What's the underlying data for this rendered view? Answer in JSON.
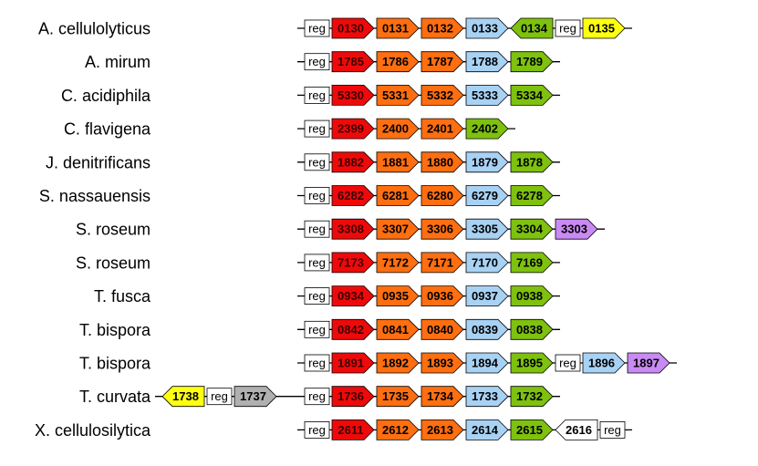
{
  "palette": {
    "red": "#ee0a0a",
    "orange": "#ff6e10",
    "blue": "#a8d2f4",
    "green": "#7ec10e",
    "yellow": "#ffff10",
    "purple": "#c98af4",
    "gray": "#b0b0b0",
    "white": "#ffffff"
  },
  "rows": [
    {
      "species": "A. cellulolyticus",
      "genes": [
        {
          "label": "reg",
          "color": "white",
          "dir": "none",
          "kind": "reg"
        },
        {
          "label": "0130",
          "color": "red",
          "dir": "right"
        },
        {
          "label": "0131",
          "color": "orange",
          "dir": "right"
        },
        {
          "label": "0132",
          "color": "orange",
          "dir": "right"
        },
        {
          "label": "0133",
          "color": "blue",
          "dir": "right"
        },
        {
          "label": "0134",
          "color": "green",
          "dir": "left"
        },
        {
          "label": "reg",
          "color": "white",
          "dir": "none",
          "kind": "reg"
        },
        {
          "label": "0135",
          "color": "yellow",
          "dir": "right"
        }
      ]
    },
    {
      "species": "A. mirum",
      "genes": [
        {
          "label": "reg",
          "color": "white",
          "dir": "none",
          "kind": "reg"
        },
        {
          "label": "1785",
          "color": "red",
          "dir": "right"
        },
        {
          "label": "1786",
          "color": "orange",
          "dir": "right"
        },
        {
          "label": "1787",
          "color": "orange",
          "dir": "right"
        },
        {
          "label": "1788",
          "color": "blue",
          "dir": "right"
        },
        {
          "label": "1789",
          "color": "green",
          "dir": "right"
        }
      ]
    },
    {
      "species": "C. acidiphila",
      "genes": [
        {
          "label": "reg",
          "color": "white",
          "dir": "none",
          "kind": "reg"
        },
        {
          "label": "5330",
          "color": "red",
          "dir": "right"
        },
        {
          "label": "5331",
          "color": "orange",
          "dir": "right"
        },
        {
          "label": "5332",
          "color": "orange",
          "dir": "right"
        },
        {
          "label": "5333",
          "color": "blue",
          "dir": "right"
        },
        {
          "label": "5334",
          "color": "green",
          "dir": "right"
        }
      ]
    },
    {
      "species": "C. flavigena",
      "genes": [
        {
          "label": "reg",
          "color": "white",
          "dir": "none",
          "kind": "reg"
        },
        {
          "label": "2399",
          "color": "red",
          "dir": "right"
        },
        {
          "label": "2400",
          "color": "orange",
          "dir": "right"
        },
        {
          "label": "2401",
          "color": "orange",
          "dir": "right"
        },
        {
          "label": "2402",
          "color": "green",
          "dir": "right"
        }
      ]
    },
    {
      "species": "J. denitrificans",
      "genes": [
        {
          "label": "reg",
          "color": "white",
          "dir": "none",
          "kind": "reg"
        },
        {
          "label": "1882",
          "color": "red",
          "dir": "right"
        },
        {
          "label": "1881",
          "color": "orange",
          "dir": "right"
        },
        {
          "label": "1880",
          "color": "orange",
          "dir": "right"
        },
        {
          "label": "1879",
          "color": "blue",
          "dir": "right"
        },
        {
          "label": "1878",
          "color": "green",
          "dir": "right"
        }
      ]
    },
    {
      "species": "S. nassauensis",
      "genes": [
        {
          "label": "reg",
          "color": "white",
          "dir": "none",
          "kind": "reg"
        },
        {
          "label": "6282",
          "color": "red",
          "dir": "right"
        },
        {
          "label": "6281",
          "color": "orange",
          "dir": "right"
        },
        {
          "label": "6280",
          "color": "orange",
          "dir": "right"
        },
        {
          "label": "6279",
          "color": "blue",
          "dir": "right"
        },
        {
          "label": "6278",
          "color": "green",
          "dir": "right"
        }
      ]
    },
    {
      "species": "S. roseum",
      "genes": [
        {
          "label": "reg",
          "color": "white",
          "dir": "none",
          "kind": "reg"
        },
        {
          "label": "3308",
          "color": "red",
          "dir": "right"
        },
        {
          "label": "3307",
          "color": "orange",
          "dir": "right"
        },
        {
          "label": "3306",
          "color": "orange",
          "dir": "right"
        },
        {
          "label": "3305",
          "color": "blue",
          "dir": "right"
        },
        {
          "label": "3304",
          "color": "green",
          "dir": "right"
        },
        {
          "label": "3303",
          "color": "purple",
          "dir": "right"
        }
      ]
    },
    {
      "species": "S. roseum",
      "genes": [
        {
          "label": "reg",
          "color": "white",
          "dir": "none",
          "kind": "reg"
        },
        {
          "label": "7173",
          "color": "red",
          "dir": "right"
        },
        {
          "label": "7172",
          "color": "orange",
          "dir": "right"
        },
        {
          "label": "7171",
          "color": "orange",
          "dir": "right"
        },
        {
          "label": "7170",
          "color": "blue",
          "dir": "right"
        },
        {
          "label": "7169",
          "color": "green",
          "dir": "right"
        }
      ]
    },
    {
      "species": "T. fusca",
      "genes": [
        {
          "label": "reg",
          "color": "white",
          "dir": "none",
          "kind": "reg"
        },
        {
          "label": "0934",
          "color": "red",
          "dir": "right"
        },
        {
          "label": "0935",
          "color": "orange",
          "dir": "right"
        },
        {
          "label": "0936",
          "color": "orange",
          "dir": "right"
        },
        {
          "label": "0937",
          "color": "blue",
          "dir": "right"
        },
        {
          "label": "0938",
          "color": "green",
          "dir": "right"
        }
      ]
    },
    {
      "species": "T. bispora",
      "genes": [
        {
          "label": "reg",
          "color": "white",
          "dir": "none",
          "kind": "reg"
        },
        {
          "label": "0842",
          "color": "red",
          "dir": "right"
        },
        {
          "label": "0841",
          "color": "orange",
          "dir": "right"
        },
        {
          "label": "0840",
          "color": "orange",
          "dir": "right"
        },
        {
          "label": "0839",
          "color": "blue",
          "dir": "right"
        },
        {
          "label": "0838",
          "color": "green",
          "dir": "right"
        }
      ]
    },
    {
      "species": "T. bispora",
      "genes": [
        {
          "label": "reg",
          "color": "white",
          "dir": "none",
          "kind": "reg"
        },
        {
          "label": "1891",
          "color": "red",
          "dir": "right"
        },
        {
          "label": "1892",
          "color": "orange",
          "dir": "right"
        },
        {
          "label": "1893",
          "color": "orange",
          "dir": "right"
        },
        {
          "label": "1894",
          "color": "blue",
          "dir": "right"
        },
        {
          "label": "1895",
          "color": "green",
          "dir": "right"
        },
        {
          "label": "reg",
          "color": "white",
          "dir": "none",
          "kind": "reg"
        },
        {
          "label": "1896",
          "color": "blue",
          "dir": "right"
        },
        {
          "label": "1897",
          "color": "purple",
          "dir": "right"
        }
      ]
    },
    {
      "species": "T. curvata",
      "prefix": [
        {
          "label": "1738",
          "color": "yellow",
          "dir": "left"
        },
        {
          "label": "reg",
          "color": "white",
          "dir": "none",
          "kind": "reg"
        },
        {
          "label": "1737",
          "color": "gray",
          "dir": "right"
        }
      ],
      "genes": [
        {
          "label": "reg",
          "color": "white",
          "dir": "none",
          "kind": "reg"
        },
        {
          "label": "1736",
          "color": "red",
          "dir": "right"
        },
        {
          "label": "1735",
          "color": "orange",
          "dir": "right"
        },
        {
          "label": "1734",
          "color": "orange",
          "dir": "right"
        },
        {
          "label": "1733",
          "color": "blue",
          "dir": "right"
        },
        {
          "label": "1732",
          "color": "green",
          "dir": "right"
        }
      ]
    },
    {
      "species": "X. cellulosilytica",
      "genes": [
        {
          "label": "reg",
          "color": "white",
          "dir": "none",
          "kind": "reg"
        },
        {
          "label": "2611",
          "color": "red",
          "dir": "right"
        },
        {
          "label": "2612",
          "color": "orange",
          "dir": "right"
        },
        {
          "label": "2613",
          "color": "orange",
          "dir": "right"
        },
        {
          "label": "2614",
          "color": "blue",
          "dir": "right"
        },
        {
          "label": "2615",
          "color": "green",
          "dir": "right"
        },
        {
          "label": "2616",
          "color": "white",
          "dir": "left"
        },
        {
          "label": "reg",
          "color": "white",
          "dir": "none",
          "kind": "reg"
        }
      ]
    }
  ]
}
